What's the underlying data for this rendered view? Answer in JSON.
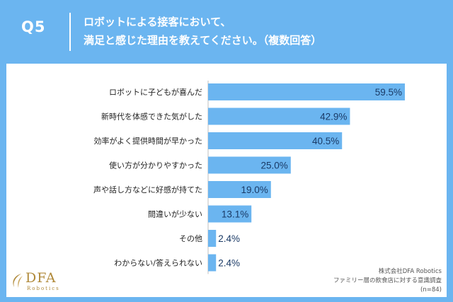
{
  "header": {
    "question_label": "Q5",
    "title_line1": "ロボットによる接客において、",
    "title_line2": "満足と感じた理由を教えてください。（複数回答）"
  },
  "chart_data": {
    "type": "bar",
    "orientation": "horizontal",
    "categories": [
      "ロボットに子どもが喜んだ",
      "新時代を体感できた気がした",
      "効率がよく提供時間が早かった",
      "使い方が分かりやすかった",
      "声や話し方などに好感が持てた",
      "間違いが少ない",
      "その他",
      "わからない/答えられない"
    ],
    "values": [
      59.5,
      42.9,
      40.5,
      25.0,
      19.0,
      13.1,
      2.4,
      2.4
    ],
    "value_labels": [
      "59.5%",
      "42.9%",
      "40.5%",
      "25.0%",
      "19.0%",
      "13.1%",
      "2.4%",
      "2.4%"
    ],
    "unit": "%",
    "xlim": [
      0,
      60
    ],
    "grid": false,
    "legend": "none",
    "bar_color": "#6bb5f0"
  },
  "logo": {
    "name": "DFA",
    "sub": "Robotics"
  },
  "source": {
    "line1": "株式会社DFA Robotics",
    "line2": "ファミリー層の飲食店に対する意識調査",
    "line3": "(n=84)"
  },
  "colors": {
    "background": "#6bb5f0",
    "card": "#ffffff",
    "logo_gold": "#b08a3a"
  }
}
